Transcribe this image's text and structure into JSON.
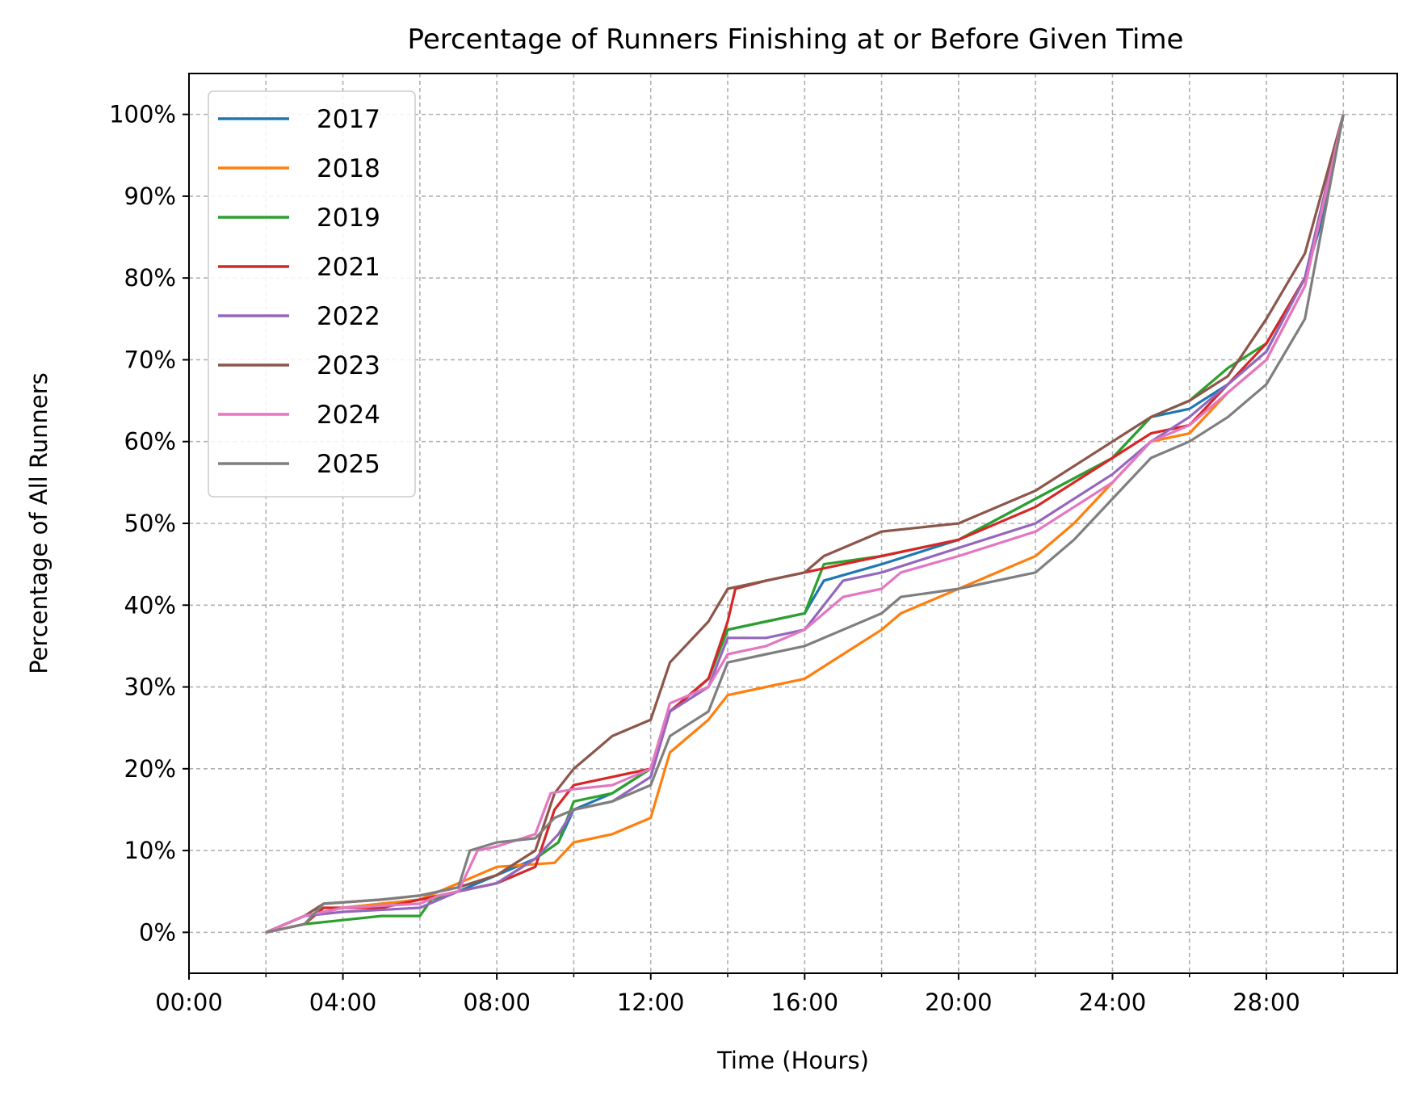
{
  "chart_data": {
    "type": "line",
    "title": "Percentage of Runners Finishing at or Before Given Time",
    "xlabel": "Time (Hours)",
    "ylabel": "Percentage of All Runners",
    "xlim": [
      0,
      31.4
    ],
    "ylim": [
      -5,
      105
    ],
    "x_unit": "hours",
    "x_ticks": [
      0,
      4,
      8,
      12,
      16,
      20,
      24,
      28
    ],
    "x_tick_labels": [
      "00:00",
      "04:00",
      "08:00",
      "12:00",
      "16:00",
      "20:00",
      "24:00",
      "28:00"
    ],
    "x_minor_ticks": [
      2,
      6,
      10,
      14,
      18,
      22,
      26,
      30
    ],
    "y_ticks": [
      0,
      10,
      20,
      30,
      40,
      50,
      60,
      70,
      80,
      90,
      100
    ],
    "y_tick_labels": [
      "0%",
      "10%",
      "20%",
      "30%",
      "40%",
      "50%",
      "60%",
      "70%",
      "80%",
      "90%",
      "100%"
    ],
    "grid": true,
    "legend_position": "upper-left",
    "series": [
      {
        "name": "2017",
        "color": "#1f77b4",
        "points": [
          [
            2,
            0
          ],
          [
            3,
            2
          ],
          [
            4,
            3
          ],
          [
            6,
            4
          ],
          [
            7,
            5
          ],
          [
            8,
            7
          ],
          [
            9,
            9
          ],
          [
            9.6,
            11
          ],
          [
            10,
            15
          ],
          [
            11,
            17
          ],
          [
            12,
            20
          ],
          [
            12.5,
            27
          ],
          [
            13.5,
            31
          ],
          [
            14,
            37
          ],
          [
            15,
            38
          ],
          [
            16,
            39
          ],
          [
            16.5,
            43
          ],
          [
            18,
            45
          ],
          [
            20,
            48
          ],
          [
            22,
            53
          ],
          [
            24,
            58
          ],
          [
            25,
            63
          ],
          [
            26,
            64
          ],
          [
            27,
            67
          ],
          [
            28,
            71
          ],
          [
            29,
            80
          ],
          [
            29.5,
            88
          ],
          [
            30,
            100
          ]
        ]
      },
      {
        "name": "2018",
        "color": "#ff7f0e",
        "points": [
          [
            2,
            0
          ],
          [
            3,
            2
          ],
          [
            4,
            3
          ],
          [
            6,
            4
          ],
          [
            7,
            6
          ],
          [
            8,
            8
          ],
          [
            9.5,
            8.5
          ],
          [
            10,
            11
          ],
          [
            11,
            12
          ],
          [
            12,
            14
          ],
          [
            12.5,
            22
          ],
          [
            13.5,
            26
          ],
          [
            14,
            29
          ],
          [
            15,
            30
          ],
          [
            16,
            31
          ],
          [
            17,
            34
          ],
          [
            18,
            37
          ],
          [
            18.5,
            39
          ],
          [
            20,
            42
          ],
          [
            22,
            46
          ],
          [
            23,
            50
          ],
          [
            24,
            55
          ],
          [
            25,
            60
          ],
          [
            26,
            61
          ],
          [
            27,
            66
          ],
          [
            28,
            70
          ],
          [
            29,
            79
          ],
          [
            30,
            100
          ]
        ]
      },
      {
        "name": "2019",
        "color": "#2ca02c",
        "points": [
          [
            2,
            0
          ],
          [
            3,
            1
          ],
          [
            4,
            1.5
          ],
          [
            5,
            2
          ],
          [
            6,
            2
          ],
          [
            6.3,
            4
          ],
          [
            7,
            5
          ],
          [
            8,
            6
          ],
          [
            9,
            9
          ],
          [
            9.6,
            11
          ],
          [
            10,
            16
          ],
          [
            11,
            17
          ],
          [
            12,
            20
          ],
          [
            12.5,
            27
          ],
          [
            13.5,
            31
          ],
          [
            14,
            37
          ],
          [
            15,
            38
          ],
          [
            16,
            39
          ],
          [
            16.5,
            45
          ],
          [
            18,
            46
          ],
          [
            20,
            48
          ],
          [
            22,
            53
          ],
          [
            24,
            58
          ],
          [
            25,
            63
          ],
          [
            26,
            65
          ],
          [
            27,
            69
          ],
          [
            28,
            72
          ],
          [
            29,
            80
          ],
          [
            30,
            100
          ]
        ]
      },
      {
        "name": "2021",
        "color": "#d62728",
        "points": [
          [
            2,
            0
          ],
          [
            3,
            1
          ],
          [
            3.5,
            3
          ],
          [
            5,
            3
          ],
          [
            6,
            4
          ],
          [
            7,
            5
          ],
          [
            8,
            6
          ],
          [
            9,
            8
          ],
          [
            9.5,
            15
          ],
          [
            10,
            18
          ],
          [
            11,
            19
          ],
          [
            12,
            20
          ],
          [
            12.5,
            27
          ],
          [
            13.5,
            31
          ],
          [
            14,
            38
          ],
          [
            14.2,
            42
          ],
          [
            15,
            43
          ],
          [
            16,
            44
          ],
          [
            17,
            45
          ],
          [
            18,
            46
          ],
          [
            20,
            48
          ],
          [
            22,
            52
          ],
          [
            24,
            58
          ],
          [
            25,
            61
          ],
          [
            26,
            62
          ],
          [
            27,
            67
          ],
          [
            28,
            72
          ],
          [
            29,
            80
          ],
          [
            30,
            100
          ]
        ]
      },
      {
        "name": "2022",
        "color": "#9467bd",
        "points": [
          [
            2,
            0
          ],
          [
            3,
            2
          ],
          [
            4,
            2.5
          ],
          [
            6,
            3
          ],
          [
            7,
            5
          ],
          [
            8,
            6
          ],
          [
            9,
            9
          ],
          [
            9.6,
            12
          ],
          [
            10,
            15
          ],
          [
            11,
            16
          ],
          [
            12,
            19
          ],
          [
            12.5,
            27
          ],
          [
            13.5,
            30
          ],
          [
            14,
            36
          ],
          [
            15,
            36
          ],
          [
            16,
            37
          ],
          [
            16.5,
            40
          ],
          [
            17,
            43
          ],
          [
            18,
            44
          ],
          [
            20,
            47
          ],
          [
            22,
            50
          ],
          [
            24,
            56
          ],
          [
            25,
            60
          ],
          [
            26,
            63
          ],
          [
            27,
            67
          ],
          [
            28,
            71
          ],
          [
            29,
            80
          ],
          [
            30,
            100
          ]
        ]
      },
      {
        "name": "2023",
        "color": "#8c564b",
        "points": [
          [
            2,
            0
          ],
          [
            3,
            2
          ],
          [
            3.5,
            3.5
          ],
          [
            5,
            4
          ],
          [
            6,
            4.5
          ],
          [
            7,
            5.5
          ],
          [
            8,
            7
          ],
          [
            9,
            10
          ],
          [
            9.5,
            17
          ],
          [
            10,
            20
          ],
          [
            10.5,
            22
          ],
          [
            11,
            24
          ],
          [
            12,
            26
          ],
          [
            12.5,
            33
          ],
          [
            13.5,
            38
          ],
          [
            14,
            42
          ],
          [
            15,
            43
          ],
          [
            16,
            44
          ],
          [
            16.5,
            46
          ],
          [
            17,
            47
          ],
          [
            18,
            49
          ],
          [
            20,
            50
          ],
          [
            22,
            54
          ],
          [
            24,
            60
          ],
          [
            25,
            63
          ],
          [
            26,
            65
          ],
          [
            27,
            68
          ],
          [
            28,
            75
          ],
          [
            29,
            83
          ],
          [
            30,
            100
          ]
        ]
      },
      {
        "name": "2024",
        "color": "#e377c2",
        "points": [
          [
            2,
            0
          ],
          [
            3,
            2
          ],
          [
            4,
            3
          ],
          [
            6,
            3.5
          ],
          [
            6.5,
            4.5
          ],
          [
            7,
            5
          ],
          [
            7.5,
            10
          ],
          [
            8,
            10.5
          ],
          [
            9,
            12
          ],
          [
            9.4,
            17
          ],
          [
            10,
            17.5
          ],
          [
            11,
            18
          ],
          [
            12,
            20
          ],
          [
            12.5,
            28
          ],
          [
            13.5,
            30
          ],
          [
            14,
            34
          ],
          [
            15,
            35
          ],
          [
            16,
            37
          ],
          [
            16.5,
            39
          ],
          [
            17,
            41
          ],
          [
            18,
            42
          ],
          [
            18.5,
            44
          ],
          [
            20,
            46
          ],
          [
            22,
            49
          ],
          [
            24,
            55
          ],
          [
            25,
            60
          ],
          [
            26,
            62
          ],
          [
            27,
            66
          ],
          [
            28,
            70
          ],
          [
            29,
            79
          ],
          [
            30,
            100
          ]
        ]
      },
      {
        "name": "2025",
        "color": "#7f7f7f",
        "points": [
          [
            2,
            0
          ],
          [
            3,
            1
          ],
          [
            3.5,
            3.5
          ],
          [
            5,
            4
          ],
          [
            6,
            4.5
          ],
          [
            7,
            5.5
          ],
          [
            7.3,
            10
          ],
          [
            8,
            11
          ],
          [
            9,
            11.5
          ],
          [
            9.5,
            14
          ],
          [
            10,
            15
          ],
          [
            11,
            16
          ],
          [
            12,
            18
          ],
          [
            12.5,
            24
          ],
          [
            13.5,
            27
          ],
          [
            14,
            33
          ],
          [
            15,
            34
          ],
          [
            16,
            35
          ],
          [
            17,
            37
          ],
          [
            18,
            39
          ],
          [
            18.5,
            41
          ],
          [
            20,
            42
          ],
          [
            22,
            44
          ],
          [
            23,
            48
          ],
          [
            24,
            53
          ],
          [
            25,
            58
          ],
          [
            26,
            60
          ],
          [
            27,
            63
          ],
          [
            28,
            67
          ],
          [
            29,
            75
          ],
          [
            30,
            100
          ]
        ]
      }
    ]
  }
}
